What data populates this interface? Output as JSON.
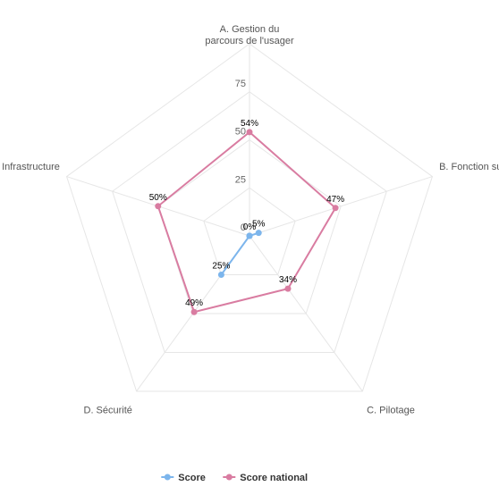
{
  "chart_data": {
    "type": "radar",
    "title": "",
    "categories": [
      "A. Gestion du parcours de l'usager",
      "B. Fonction support",
      "C. Pilotage",
      "D. Sécurité",
      "E. Infrastructure"
    ],
    "radial_axis": {
      "min": 0,
      "max": 100,
      "ticks": [
        0,
        25,
        50,
        75
      ],
      "tick_labels": [
        "0",
        "25",
        "50",
        "75"
      ]
    },
    "grid": true,
    "legend_position": "bottom",
    "series": [
      {
        "name": "Score",
        "color": "#7cb5ec",
        "values": [
          0,
          5,
          0,
          25,
          0
        ],
        "data_labels": [
          "0%",
          "5%",
          "",
          "25%",
          ""
        ]
      },
      {
        "name": "Score national",
        "color": "#d97ca1",
        "values": [
          54,
          47,
          34,
          49,
          50
        ],
        "data_labels": [
          "54%",
          "47%",
          "34%",
          "49%",
          "50%"
        ]
      }
    ]
  },
  "legend": {
    "items": [
      {
        "label": "Score",
        "color": "#7cb5ec"
      },
      {
        "label": "Score national",
        "color": "#d97ca1"
      }
    ]
  }
}
